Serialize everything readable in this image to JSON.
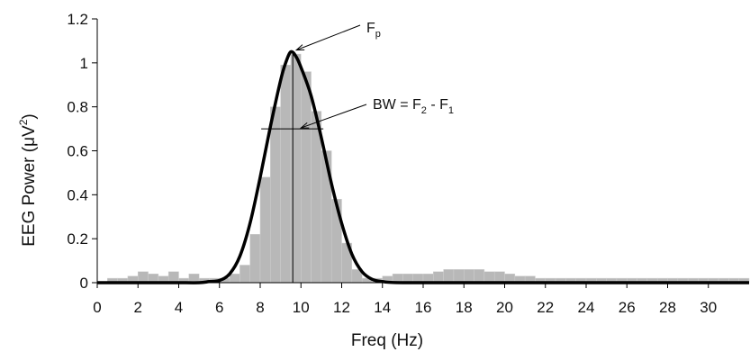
{
  "chart_data": {
    "type": "bar",
    "title": "",
    "xlabel": "Freq (Hz)",
    "ylabel_main": "EEG Power (",
    "ylabel_mu": "μ",
    "ylabel_unit": "V",
    "ylabel_sup": "2",
    "ylabel_close": ")",
    "xlim": [
      0,
      32
    ],
    "ylim": [
      0,
      1.2
    ],
    "x_ticks": [
      "0",
      "2",
      "4",
      "6",
      "8",
      "10",
      "12",
      "14",
      "16",
      "18",
      "20",
      "22",
      "24",
      "26",
      "28",
      "30"
    ],
    "y_ticks": [
      "0",
      "0.2",
      "0.4",
      "0.6",
      "0.8",
      "1",
      "1.2"
    ],
    "bar_series": {
      "name": "",
      "x": [
        0.25,
        0.75,
        1.25,
        1.75,
        2.25,
        2.75,
        3.25,
        3.75,
        4.25,
        4.75,
        5.25,
        5.75,
        6.25,
        6.75,
        7.25,
        7.75,
        8.25,
        8.75,
        9.25,
        9.75,
        10.25,
        10.75,
        11.25,
        11.75,
        12.25,
        12.75,
        13.25,
        13.75,
        14.25,
        14.75,
        15.25,
        15.75,
        16.25,
        16.75,
        17.25,
        17.75,
        18.25,
        18.75,
        19.25,
        19.75,
        20.25,
        20.75,
        21.25,
        21.75,
        22.25,
        22.75,
        23.25,
        23.75,
        24.25,
        24.75,
        25.25,
        25.75,
        26.25,
        26.75,
        27.25,
        27.75,
        28.25,
        28.75,
        29.25,
        29.75,
        30.25,
        30.75,
        31.25,
        31.75
      ],
      "values": [
        0.0,
        0.02,
        0.02,
        0.03,
        0.05,
        0.04,
        0.03,
        0.05,
        0.02,
        0.04,
        0.02,
        0.02,
        0.02,
        0.04,
        0.08,
        0.22,
        0.48,
        0.8,
        0.99,
        1.04,
        0.96,
        0.78,
        0.6,
        0.38,
        0.18,
        0.06,
        0.02,
        0.02,
        0.03,
        0.04,
        0.04,
        0.04,
        0.04,
        0.05,
        0.06,
        0.06,
        0.06,
        0.06,
        0.05,
        0.05,
        0.04,
        0.03,
        0.03,
        0.02,
        0.02,
        0.02,
        0.02,
        0.02,
        0.02,
        0.02,
        0.02,
        0.02,
        0.02,
        0.02,
        0.02,
        0.02,
        0.02,
        0.02,
        0.02,
        0.02,
        0.02,
        0.02,
        0.02,
        0.02
      ]
    },
    "fit_curve": {
      "name": "",
      "x": [
        0,
        1,
        2,
        3,
        4,
        5,
        5.5,
        6,
        6.5,
        7,
        7.5,
        8,
        8.5,
        9,
        9.25,
        9.5,
        9.75,
        10,
        10.5,
        11,
        11.5,
        12,
        12.5,
        13,
        13.5,
        14,
        15,
        20,
        25,
        30,
        32
      ],
      "values": [
        0,
        0,
        0,
        0,
        0,
        0,
        0.005,
        0.01,
        0.04,
        0.12,
        0.27,
        0.48,
        0.71,
        0.92,
        1.0,
        1.05,
        1.03,
        0.98,
        0.85,
        0.66,
        0.45,
        0.27,
        0.13,
        0.05,
        0.015,
        0.005,
        0,
        0,
        0,
        0,
        0
      ]
    },
    "peak_freq": 9.6,
    "bw_level": 0.7,
    "bw_f1": 8.05,
    "bw_f2": 11.1,
    "annotations": {
      "fp_main": "F",
      "fp_sub": "p",
      "bw_prefix": "BW = F",
      "bw_sub2": "2",
      "bw_mid": " - F",
      "bw_sub1": "1"
    },
    "grid": false,
    "legend": "none",
    "colors": {
      "bars": "#b8b8b8",
      "curve": "#000000",
      "axes": "#000000"
    }
  }
}
